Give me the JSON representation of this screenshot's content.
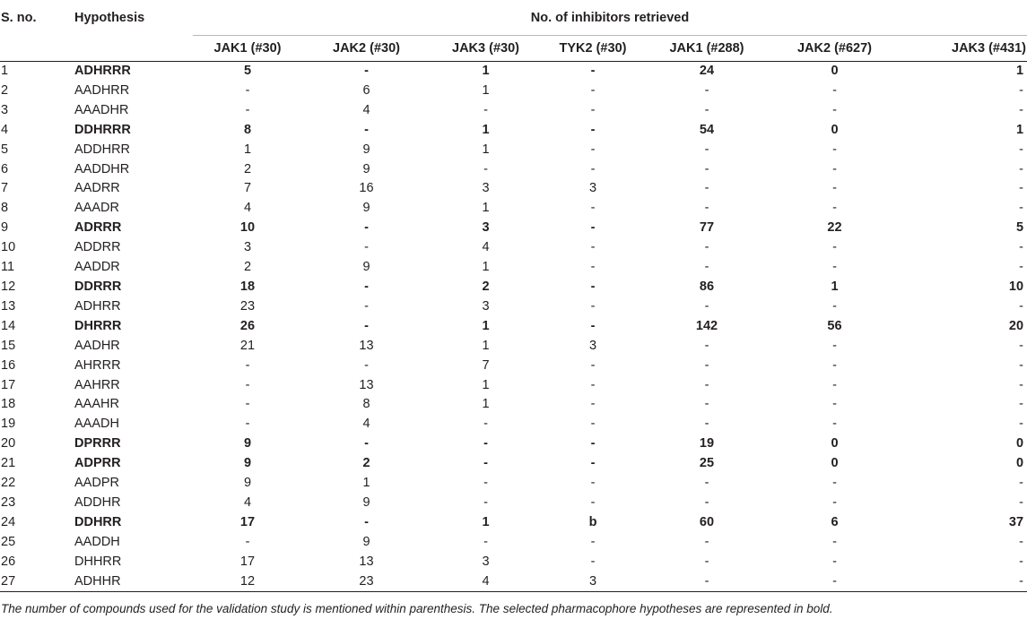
{
  "table": {
    "header": {
      "sno": "S. no.",
      "hypothesis": "Hypothesis",
      "group": "No. of inhibitors retrieved",
      "columns": [
        "JAK1 (#30)",
        "JAK2 (#30)",
        "JAK3 (#30)",
        "TYK2 (#30)",
        "JAK1 (#288)",
        "JAK2 (#627)",
        "JAK3 (#431)"
      ]
    },
    "rows": [
      {
        "sno": "1",
        "hyp": "ADHRRR",
        "selected": true,
        "vals": [
          "5",
          "-",
          "1",
          "-",
          "24",
          "0",
          "1"
        ]
      },
      {
        "sno": "2",
        "hyp": "AADHRR",
        "selected": false,
        "vals": [
          "-",
          "6",
          "1",
          "-",
          "-",
          "-",
          "-"
        ]
      },
      {
        "sno": "3",
        "hyp": "AAADHR",
        "selected": false,
        "vals": [
          "-",
          "4",
          "-",
          "-",
          "-",
          "-",
          "-"
        ]
      },
      {
        "sno": "4",
        "hyp": "DDHRRR",
        "selected": true,
        "vals": [
          "8",
          "-",
          "1",
          "-",
          "54",
          "0",
          "1"
        ]
      },
      {
        "sno": "5",
        "hyp": "ADDHRR",
        "selected": false,
        "vals": [
          "1",
          "9",
          "1",
          "-",
          "-",
          "-",
          "-"
        ]
      },
      {
        "sno": "6",
        "hyp": "AADDHR",
        "selected": false,
        "vals": [
          "2",
          "9",
          "-",
          "-",
          "-",
          "-",
          "-"
        ]
      },
      {
        "sno": "7",
        "hyp": "AADRR",
        "selected": false,
        "vals": [
          "7",
          "16",
          "3",
          "3",
          "-",
          "-",
          "-"
        ]
      },
      {
        "sno": "8",
        "hyp": "AAADR",
        "selected": false,
        "vals": [
          "4",
          "9",
          "1",
          "-",
          "-",
          "-",
          "-"
        ]
      },
      {
        "sno": "9",
        "hyp": "ADRRR",
        "selected": true,
        "vals": [
          "10",
          "-",
          "3",
          "-",
          "77",
          "22",
          "5"
        ]
      },
      {
        "sno": "10",
        "hyp": "ADDRR",
        "selected": false,
        "vals": [
          "3",
          "-",
          "4",
          "-",
          "-",
          "-",
          "-"
        ]
      },
      {
        "sno": "11",
        "hyp": "AADDR",
        "selected": false,
        "vals": [
          "2",
          "9",
          "1",
          "-",
          "-",
          "-",
          "-"
        ]
      },
      {
        "sno": "12",
        "hyp": "DDRRR",
        "selected": true,
        "vals": [
          "18",
          "-",
          "2",
          "-",
          "86",
          "1",
          "10"
        ]
      },
      {
        "sno": "13",
        "hyp": "ADHRR",
        "selected": false,
        "vals": [
          "23",
          "-",
          "3",
          "-",
          "-",
          "-",
          "-"
        ]
      },
      {
        "sno": "14",
        "hyp": "DHRRR",
        "selected": true,
        "vals": [
          "26",
          "-",
          "1",
          "-",
          "142",
          "56",
          "20"
        ]
      },
      {
        "sno": "15",
        "hyp": "AADHR",
        "selected": false,
        "vals": [
          "21",
          "13",
          "1",
          "3",
          "-",
          "-",
          "-"
        ]
      },
      {
        "sno": "16",
        "hyp": "AHRRR",
        "selected": false,
        "vals": [
          "-",
          "-",
          "7",
          "-",
          "-",
          "-",
          "-"
        ]
      },
      {
        "sno": "17",
        "hyp": "AAHRR",
        "selected": false,
        "vals": [
          "-",
          "13",
          "1",
          "-",
          "-",
          "-",
          "-"
        ]
      },
      {
        "sno": "18",
        "hyp": "AAAHR",
        "selected": false,
        "vals": [
          "-",
          "8",
          "1",
          "-",
          "-",
          "-",
          "-"
        ]
      },
      {
        "sno": "19",
        "hyp": "AAADH",
        "selected": false,
        "vals": [
          "-",
          "4",
          "-",
          "-",
          "-",
          "-",
          "-"
        ]
      },
      {
        "sno": "20",
        "hyp": "DPRRR",
        "selected": true,
        "vals": [
          "9",
          "-",
          "-",
          "-",
          "19",
          "0",
          "0"
        ]
      },
      {
        "sno": "21",
        "hyp": "ADPRR",
        "selected": true,
        "vals": [
          "9",
          "2",
          "-",
          "-",
          "25",
          "0",
          "0"
        ]
      },
      {
        "sno": "22",
        "hyp": "AADPR",
        "selected": false,
        "vals": [
          "9",
          "1",
          "-",
          "-",
          "-",
          "-",
          "-"
        ]
      },
      {
        "sno": "23",
        "hyp": "ADDHR",
        "selected": false,
        "vals": [
          "4",
          "9",
          "-",
          "-",
          "-",
          "-",
          "-"
        ]
      },
      {
        "sno": "24",
        "hyp": "DDHRR",
        "selected": true,
        "vals": [
          "17",
          "-",
          "1",
          "b",
          "60",
          "6",
          "37"
        ]
      },
      {
        "sno": "25",
        "hyp": "AADDH",
        "selected": false,
        "vals": [
          "-",
          "9",
          "-",
          "-",
          "-",
          "-",
          "-"
        ]
      },
      {
        "sno": "26",
        "hyp": "DHHRR",
        "selected": false,
        "vals": [
          "17",
          "13",
          "3",
          "-",
          "-",
          "-",
          "-"
        ]
      },
      {
        "sno": "27",
        "hyp": "ADHHR",
        "selected": false,
        "vals": [
          "12",
          "23",
          "4",
          "3",
          "-",
          "-",
          "-"
        ]
      }
    ]
  },
  "footnote": "The number of compounds used for the validation study is mentioned within parenthesis. The selected pharmacophore hypotheses are represented in bold."
}
